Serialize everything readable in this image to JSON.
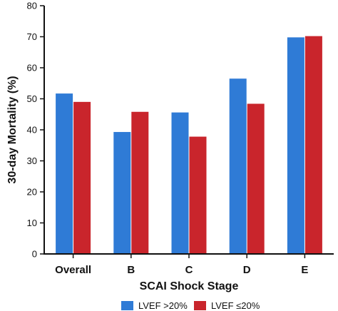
{
  "chart_data": {
    "type": "bar",
    "title": "",
    "xlabel": "SCAI Shock Stage",
    "ylabel": "30-day Mortality (%)",
    "ylim": [
      0,
      80
    ],
    "yticks": [
      "0",
      "10",
      "20",
      "30",
      "40",
      "50",
      "60",
      "70",
      "80"
    ],
    "categories": [
      "Overall",
      "B",
      "C",
      "D",
      "E"
    ],
    "series": [
      {
        "name": "LVEF >20%",
        "color": "#2f7bd6",
        "values": [
          51.7,
          39.3,
          45.6,
          56.5,
          69.8
        ]
      },
      {
        "name": "LVEF ≤20%",
        "color": "#c9252c",
        "values": [
          49.0,
          45.8,
          37.8,
          48.4,
          70.2
        ]
      }
    ],
    "grid": false,
    "legend_position": "bottom"
  }
}
